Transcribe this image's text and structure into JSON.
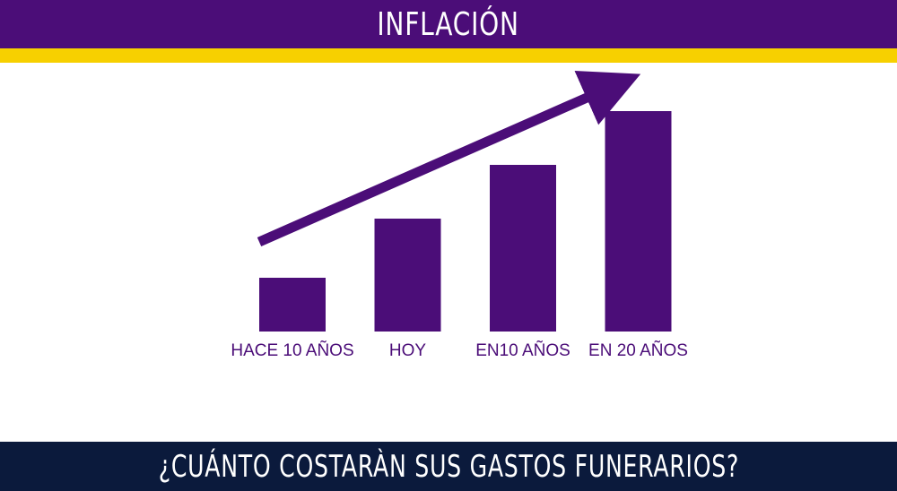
{
  "header": {
    "title": "INFLACIÓN"
  },
  "footer": {
    "question": "¿CUÁNTO COSTARÀN SUS GASTOS FUNERARIOS?"
  },
  "colors": {
    "header_bg": "#4b0d78",
    "accent_stripe": "#f7d000",
    "footer_bg": "#0b1a3c",
    "bar": "#4b0d78",
    "arrow": "#4b0d78"
  },
  "chart_data": {
    "type": "bar",
    "categories": [
      "HACE 10 AÑOS",
      "HOY",
      "EN10 AÑOS",
      "EN 20 AÑOS"
    ],
    "values": [
      1.0,
      2.1,
      3.1,
      4.1
    ],
    "ylim": [
      0,
      4.1
    ],
    "grid": false,
    "trend_arrow": true,
    "title": "",
    "xlabel": "",
    "ylabel": ""
  }
}
